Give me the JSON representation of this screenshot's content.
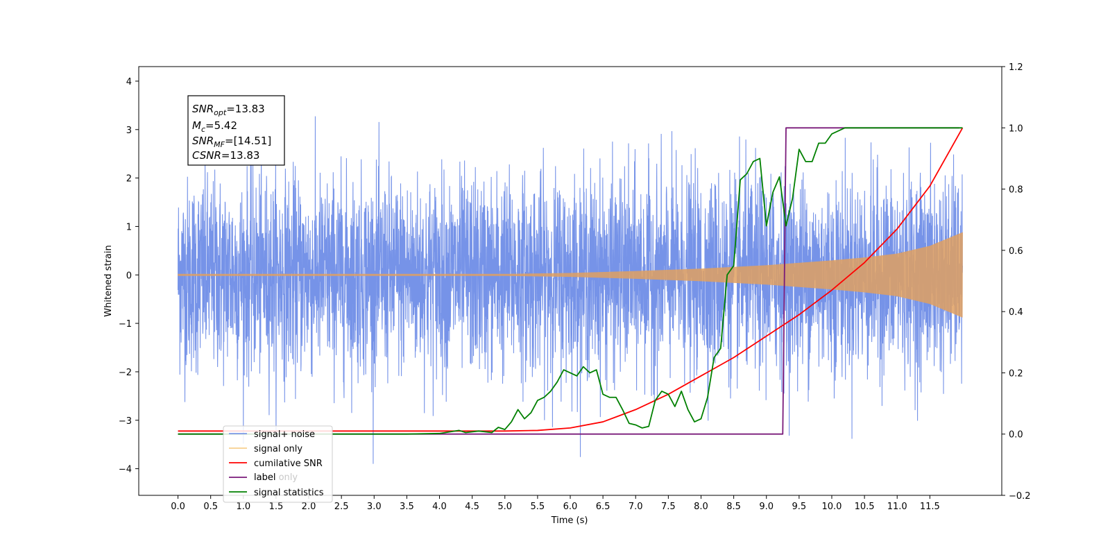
{
  "chart_data": {
    "type": "line",
    "xlabel": "Time (s)",
    "ylabel": "Whitened strain",
    "xlim": [
      -0.6,
      12.6
    ],
    "ylim": [
      -4.55,
      4.3
    ],
    "y2lim": [
      -0.2,
      1.2
    ],
    "xticks": [
      "0.0",
      "0.5",
      "1.0",
      "1.5",
      "2.0",
      "2.5",
      "3.0",
      "3.5",
      "4.0",
      "4.5",
      "5.0",
      "5.5",
      "6.0",
      "6.5",
      "7.0",
      "7.5",
      "8.0",
      "8.5",
      "9.0",
      "9.5",
      "10.0",
      "10.5",
      "11.0",
      "11.5"
    ],
    "yticks": [
      "4",
      "3",
      "2",
      "1",
      "0",
      "−1",
      "−2",
      "−3",
      "−4"
    ],
    "y2ticks": [
      "1.2",
      "1.0",
      "0.8",
      "0.6",
      "0.4",
      "0.2",
      "0.0",
      "−0.2"
    ],
    "stats_box": {
      "snr_opt_sym": "SNR",
      "snr_opt_sub": "opt",
      "snr_opt_val": "=13.83",
      "mc_sym": "M",
      "mc_sub": "c",
      "mc_val": "=5.42",
      "snr_mf_sym": "SNR",
      "snr_mf_sub": "MF",
      "snr_mf_val": "=[14.51]",
      "csnr_sym": "CSNR",
      "csnr_val": "=13.83"
    },
    "legend": {
      "placement": "lower-left",
      "entries": [
        "signal+ noise",
        "signal only",
        "cumilative SNR",
        "label",
        "signal statistics"
      ],
      "ghost_text": "label only"
    },
    "series": [
      {
        "name": "signal+ noise",
        "axis": "left",
        "color": "#6a8ae6",
        "noise_amplitude_approx": 3.9,
        "t_range": [
          0,
          12
        ]
      },
      {
        "name": "signal only",
        "axis": "left",
        "color": "#e0a060",
        "envelope_t": [
          0,
          3,
          5,
          6,
          7,
          8,
          9,
          10,
          10.5,
          11,
          11.5,
          12
        ],
        "envelope_amp": [
          0.02,
          0.02,
          0.02,
          0.04,
          0.08,
          0.13,
          0.2,
          0.3,
          0.36,
          0.44,
          0.6,
          0.88
        ]
      },
      {
        "name": "cumilative SNR",
        "axis": "right",
        "color": "#ff0000",
        "x": [
          0,
          1,
          2,
          3,
          4,
          5,
          5.5,
          6,
          6.5,
          7,
          7.5,
          8,
          8.5,
          9,
          9.5,
          10,
          10.5,
          11,
          11.5,
          12
        ],
        "y": [
          0.01,
          0.01,
          0.01,
          0.01,
          0.01,
          0.01,
          0.012,
          0.02,
          0.04,
          0.08,
          0.13,
          0.19,
          0.25,
          0.32,
          0.39,
          0.47,
          0.56,
          0.67,
          0.81,
          1.0
        ]
      },
      {
        "name": "label",
        "axis": "right",
        "color": "#7a1a7a",
        "x": [
          0,
          9.25,
          9.3,
          11.95
        ],
        "y": [
          0.0,
          0.0,
          1.0,
          1.0
        ]
      },
      {
        "name": "signal statistics",
        "axis": "right",
        "color": "#008000",
        "x": [
          0,
          3.5,
          4.0,
          4.3,
          4.4,
          4.6,
          4.8,
          4.9,
          5.0,
          5.1,
          5.2,
          5.3,
          5.4,
          5.5,
          5.6,
          5.7,
          5.8,
          5.9,
          6.0,
          6.1,
          6.2,
          6.3,
          6.4,
          6.5,
          6.6,
          6.7,
          6.8,
          6.9,
          7.0,
          7.1,
          7.2,
          7.3,
          7.4,
          7.5,
          7.6,
          7.7,
          7.8,
          7.9,
          8.0,
          8.1,
          8.2,
          8.3,
          8.4,
          8.5,
          8.6,
          8.7,
          8.8,
          8.9,
          9.0,
          9.1,
          9.2,
          9.3,
          9.4,
          9.5,
          9.6,
          9.7,
          9.8,
          9.9,
          10.0,
          10.2,
          10.5,
          12.0
        ],
        "y": [
          0.0,
          0.0,
          0.002,
          0.012,
          0.005,
          0.01,
          0.005,
          0.022,
          0.015,
          0.04,
          0.08,
          0.05,
          0.07,
          0.11,
          0.12,
          0.14,
          0.17,
          0.21,
          0.2,
          0.19,
          0.22,
          0.2,
          0.21,
          0.13,
          0.12,
          0.12,
          0.08,
          0.035,
          0.03,
          0.02,
          0.025,
          0.11,
          0.14,
          0.13,
          0.09,
          0.14,
          0.08,
          0.04,
          0.05,
          0.12,
          0.25,
          0.28,
          0.52,
          0.55,
          0.83,
          0.85,
          0.89,
          0.9,
          0.68,
          0.79,
          0.84,
          0.68,
          0.77,
          0.93,
          0.89,
          0.89,
          0.95,
          0.95,
          0.98,
          1.0,
          1.0,
          1.0
        ]
      }
    ]
  }
}
